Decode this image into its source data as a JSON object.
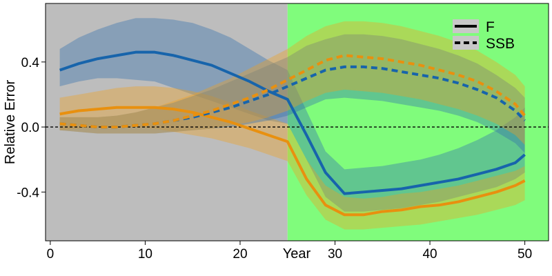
{
  "chart_data": {
    "type": "line",
    "title": "",
    "xlabel": "Year",
    "ylabel": "Relative Error",
    "xlim": [
      -0.5,
      52.5
    ],
    "ylim": [
      -0.7,
      0.76
    ],
    "x_ticks": [
      0,
      10,
      20,
      30,
      40,
      50
    ],
    "x_tick_labels": [
      "0",
      "10",
      "20",
      "30",
      "40",
      "50"
    ],
    "y_ticks": [
      -0.4,
      0.0,
      0.4
    ],
    "y_tick_labels": [
      "-0.4",
      "0.0",
      "0.4"
    ],
    "grid": false,
    "reference_line": {
      "y": 0.0,
      "style": "dashed",
      "color": "#000000"
    },
    "regions": [
      {
        "x_start": -0.5,
        "x_end": 25,
        "color": "#bdbdbd"
      },
      {
        "x_start": 25,
        "x_end": 52.5,
        "color": "#80fc7c"
      }
    ],
    "legend": {
      "position": "top-right",
      "entries": [
        {
          "label": "F",
          "linestyle": "solid"
        },
        {
          "label": "SSB",
          "linestyle": "dashed"
        }
      ]
    },
    "x": [
      1,
      3,
      5,
      7,
      9,
      11,
      13,
      15,
      17,
      19,
      21,
      23,
      25,
      27,
      29,
      31,
      33,
      35,
      37,
      39,
      41,
      43,
      45,
      47,
      49,
      50
    ],
    "series": [
      {
        "metric": "F",
        "color": "#1764ab",
        "linestyle": "solid",
        "values": [
          0.35,
          0.39,
          0.42,
          0.44,
          0.46,
          0.46,
          0.44,
          0.41,
          0.38,
          0.33,
          0.28,
          0.22,
          0.17,
          -0.05,
          -0.28,
          -0.41,
          -0.4,
          -0.39,
          -0.38,
          -0.36,
          -0.34,
          -0.32,
          -0.29,
          -0.26,
          -0.22,
          -0.17
        ],
        "band_upper": [
          0.48,
          0.55,
          0.6,
          0.64,
          0.67,
          0.67,
          0.66,
          0.64,
          0.6,
          0.55,
          0.48,
          0.41,
          0.35,
          0.1,
          -0.15,
          -0.26,
          -0.25,
          -0.24,
          -0.22,
          -0.2,
          -0.17,
          -0.13,
          -0.08,
          -0.02,
          0.06,
          0.12
        ],
        "band_lower": [
          0.25,
          0.28,
          0.3,
          0.3,
          0.29,
          0.28,
          0.24,
          0.2,
          0.16,
          0.12,
          0.08,
          0.04,
          0.02,
          -0.2,
          -0.43,
          -0.52,
          -0.52,
          -0.51,
          -0.5,
          -0.48,
          -0.46,
          -0.43,
          -0.4,
          -0.37,
          -0.32,
          -0.28
        ]
      },
      {
        "metric": "F",
        "color": "#e8900f",
        "linestyle": "solid",
        "values": [
          0.08,
          0.1,
          0.11,
          0.12,
          0.12,
          0.12,
          0.11,
          0.09,
          0.06,
          0.03,
          -0.01,
          -0.05,
          -0.09,
          -0.32,
          -0.48,
          -0.54,
          -0.54,
          -0.52,
          -0.51,
          -0.49,
          -0.48,
          -0.46,
          -0.43,
          -0.4,
          -0.36,
          -0.33
        ],
        "band_upper": [
          0.18,
          0.2,
          0.22,
          0.24,
          0.25,
          0.25,
          0.24,
          0.22,
          0.19,
          0.15,
          0.1,
          0.06,
          0.02,
          -0.2,
          -0.36,
          -0.43,
          -0.44,
          -0.43,
          -0.41,
          -0.4,
          -0.38,
          -0.36,
          -0.33,
          -0.3,
          -0.27,
          -0.24
        ],
        "band_lower": [
          -0.02,
          -0.01,
          0.0,
          0.0,
          0.0,
          -0.01,
          -0.03,
          -0.05,
          -0.07,
          -0.1,
          -0.13,
          -0.17,
          -0.21,
          -0.42,
          -0.57,
          -0.63,
          -0.63,
          -0.62,
          -0.61,
          -0.6,
          -0.58,
          -0.56,
          -0.54,
          -0.51,
          -0.48,
          -0.45
        ]
      },
      {
        "metric": "SSB",
        "color": "#1764ab",
        "linestyle": "dashed",
        "values": [
          0.02,
          0.01,
          0.0,
          0.0,
          0.01,
          0.02,
          0.04,
          0.06,
          0.09,
          0.12,
          0.16,
          0.2,
          0.25,
          0.3,
          0.35,
          0.37,
          0.37,
          0.36,
          0.34,
          0.32,
          0.3,
          0.27,
          0.23,
          0.18,
          0.1,
          0.04
        ],
        "band_upper": [
          0.06,
          0.06,
          0.06,
          0.07,
          0.09,
          0.12,
          0.15,
          0.19,
          0.23,
          0.28,
          0.33,
          0.38,
          0.43,
          0.5,
          0.54,
          0.57,
          0.57,
          0.56,
          0.54,
          0.51,
          0.48,
          0.44,
          0.39,
          0.32,
          0.24,
          0.18
        ],
        "band_lower": [
          -0.02,
          -0.03,
          -0.04,
          -0.04,
          -0.04,
          -0.04,
          -0.03,
          -0.02,
          -0.01,
          0.0,
          0.02,
          0.04,
          0.07,
          0.12,
          0.17,
          0.18,
          0.17,
          0.16,
          0.14,
          0.12,
          0.1,
          0.07,
          0.03,
          -0.03,
          -0.1,
          -0.16
        ]
      },
      {
        "metric": "SSB",
        "color": "#e8900f",
        "linestyle": "dashed",
        "values": [
          0.02,
          0.01,
          0.0,
          0.0,
          0.01,
          0.02,
          0.04,
          0.07,
          0.1,
          0.14,
          0.18,
          0.23,
          0.29,
          0.35,
          0.41,
          0.44,
          0.43,
          0.42,
          0.4,
          0.38,
          0.35,
          0.32,
          0.28,
          0.22,
          0.14,
          0.07
        ],
        "band_upper": [
          0.06,
          0.06,
          0.06,
          0.07,
          0.09,
          0.12,
          0.16,
          0.2,
          0.25,
          0.3,
          0.36,
          0.42,
          0.48,
          0.56,
          0.62,
          0.65,
          0.65,
          0.64,
          0.62,
          0.59,
          0.56,
          0.52,
          0.47,
          0.4,
          0.32,
          0.25
        ],
        "band_lower": [
          -0.02,
          -0.03,
          -0.04,
          -0.04,
          -0.04,
          -0.04,
          -0.03,
          -0.02,
          -0.01,
          0.01,
          0.03,
          0.06,
          0.1,
          0.16,
          0.21,
          0.23,
          0.22,
          0.21,
          0.19,
          0.17,
          0.14,
          0.11,
          0.07,
          0.02,
          -0.05,
          -0.11
        ]
      }
    ]
  }
}
